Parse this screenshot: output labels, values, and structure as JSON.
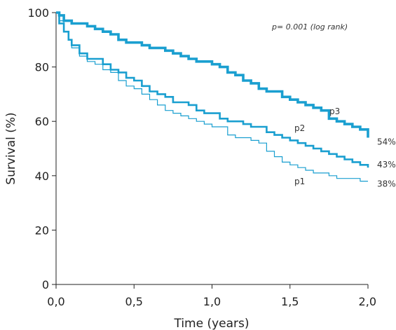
{
  "chart_data": {
    "type": "line",
    "xlabel": "Time (years)",
    "ylabel": "Survival (%)",
    "xlim": [
      0,
      2
    ],
    "ylim": [
      0,
      100
    ],
    "x_ticks": [
      "0,0",
      "0,5",
      "1,0",
      "1,5",
      "2,0"
    ],
    "y_ticks": [
      "0",
      "20",
      "40",
      "60",
      "80",
      "100"
    ],
    "annotation": "p= 0.001 (log rank)",
    "series": [
      {
        "name": "p1",
        "end_label": "38%",
        "color": "#1a9fd0",
        "stroke": "thin",
        "points": [
          [
            0,
            100
          ],
          [
            0.02,
            97
          ],
          [
            0.05,
            93
          ],
          [
            0.08,
            90
          ],
          [
            0.1,
            87
          ],
          [
            0.15,
            84
          ],
          [
            0.2,
            82
          ],
          [
            0.25,
            81
          ],
          [
            0.3,
            79
          ],
          [
            0.35,
            78
          ],
          [
            0.4,
            75
          ],
          [
            0.45,
            73
          ],
          [
            0.5,
            72
          ],
          [
            0.55,
            70
          ],
          [
            0.6,
            68
          ],
          [
            0.65,
            66
          ],
          [
            0.7,
            64
          ],
          [
            0.75,
            63
          ],
          [
            0.8,
            62
          ],
          [
            0.85,
            61
          ],
          [
            0.9,
            60
          ],
          [
            0.95,
            59
          ],
          [
            1.0,
            58
          ],
          [
            1.05,
            58
          ],
          [
            1.1,
            55
          ],
          [
            1.15,
            54
          ],
          [
            1.2,
            54
          ],
          [
            1.25,
            53
          ],
          [
            1.3,
            52
          ],
          [
            1.35,
            49
          ],
          [
            1.4,
            47
          ],
          [
            1.45,
            45
          ],
          [
            1.5,
            44
          ],
          [
            1.55,
            43
          ],
          [
            1.6,
            42
          ],
          [
            1.65,
            41
          ],
          [
            1.7,
            41
          ],
          [
            1.75,
            40
          ],
          [
            1.8,
            39
          ],
          [
            1.85,
            39
          ],
          [
            1.9,
            39
          ],
          [
            1.95,
            38
          ],
          [
            2.0,
            38
          ]
        ]
      },
      {
        "name": "p2",
        "end_label": "43%",
        "color": "#1a9fd0",
        "stroke": "medium",
        "points": [
          [
            0,
            100
          ],
          [
            0.02,
            96
          ],
          [
            0.05,
            93
          ],
          [
            0.08,
            90
          ],
          [
            0.1,
            88
          ],
          [
            0.15,
            85
          ],
          [
            0.2,
            83
          ],
          [
            0.25,
            83
          ],
          [
            0.3,
            81
          ],
          [
            0.35,
            79
          ],
          [
            0.4,
            78
          ],
          [
            0.45,
            76
          ],
          [
            0.5,
            75
          ],
          [
            0.55,
            73
          ],
          [
            0.6,
            71
          ],
          [
            0.65,
            70
          ],
          [
            0.7,
            69
          ],
          [
            0.75,
            67
          ],
          [
            0.8,
            67
          ],
          [
            0.85,
            66
          ],
          [
            0.9,
            64
          ],
          [
            0.95,
            63
          ],
          [
            1.0,
            63
          ],
          [
            1.05,
            61
          ],
          [
            1.1,
            60
          ],
          [
            1.15,
            60
          ],
          [
            1.2,
            59
          ],
          [
            1.25,
            58
          ],
          [
            1.3,
            58
          ],
          [
            1.35,
            56
          ],
          [
            1.4,
            55
          ],
          [
            1.45,
            54
          ],
          [
            1.5,
            53
          ],
          [
            1.55,
            52
          ],
          [
            1.6,
            51
          ],
          [
            1.65,
            50
          ],
          [
            1.7,
            49
          ],
          [
            1.75,
            48
          ],
          [
            1.8,
            47
          ],
          [
            1.85,
            46
          ],
          [
            1.9,
            45
          ],
          [
            1.95,
            44
          ],
          [
            2.0,
            43
          ]
        ]
      },
      {
        "name": "p3",
        "end_label": "54%",
        "color": "#1a9fd0",
        "stroke": "thick",
        "points": [
          [
            0,
            100
          ],
          [
            0.02,
            99
          ],
          [
            0.05,
            97
          ],
          [
            0.1,
            96
          ],
          [
            0.15,
            96
          ],
          [
            0.2,
            95
          ],
          [
            0.25,
            94
          ],
          [
            0.3,
            93
          ],
          [
            0.35,
            92
          ],
          [
            0.4,
            90
          ],
          [
            0.45,
            89
          ],
          [
            0.5,
            89
          ],
          [
            0.55,
            88
          ],
          [
            0.6,
            87
          ],
          [
            0.65,
            87
          ],
          [
            0.7,
            86
          ],
          [
            0.75,
            85
          ],
          [
            0.8,
            84
          ],
          [
            0.85,
            83
          ],
          [
            0.9,
            82
          ],
          [
            0.95,
            82
          ],
          [
            1.0,
            81
          ],
          [
            1.05,
            80
          ],
          [
            1.1,
            78
          ],
          [
            1.15,
            77
          ],
          [
            1.2,
            75
          ],
          [
            1.25,
            74
          ],
          [
            1.3,
            72
          ],
          [
            1.35,
            71
          ],
          [
            1.4,
            71
          ],
          [
            1.45,
            69
          ],
          [
            1.5,
            68
          ],
          [
            1.55,
            67
          ],
          [
            1.6,
            66
          ],
          [
            1.65,
            65
          ],
          [
            1.7,
            64
          ],
          [
            1.75,
            61
          ],
          [
            1.8,
            60
          ],
          [
            1.85,
            59
          ],
          [
            1.9,
            58
          ],
          [
            1.95,
            57
          ],
          [
            2.0,
            54
          ]
        ]
      }
    ]
  }
}
